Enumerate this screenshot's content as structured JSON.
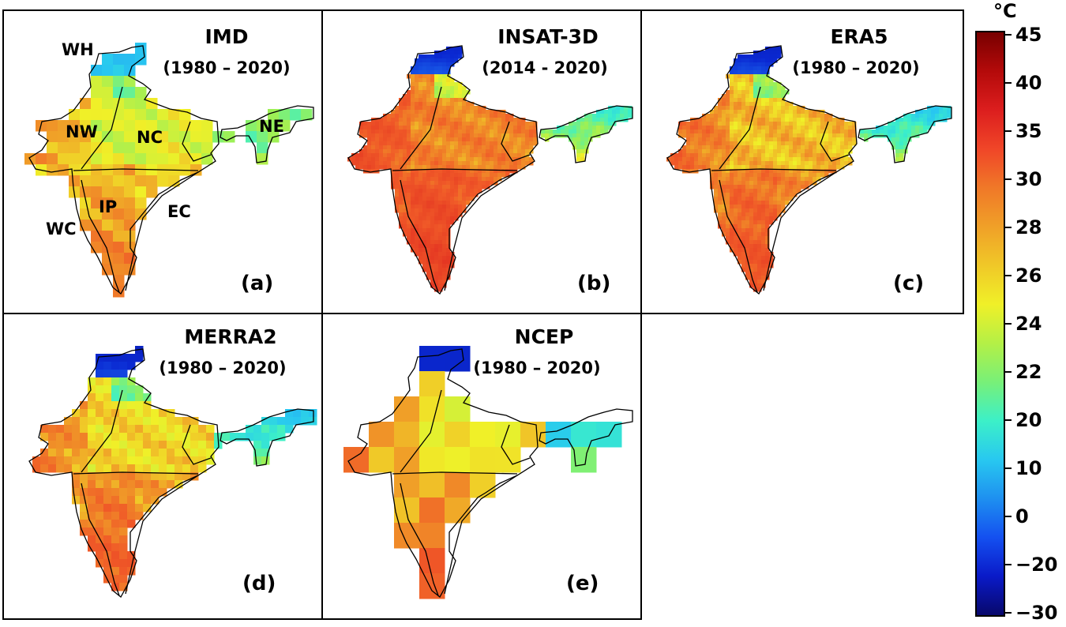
{
  "panels": [
    {
      "id": "a",
      "title": "IMD",
      "period": "(1980 – 2020)",
      "label": "(a)",
      "regions": [
        "WH",
        "NW",
        "NC",
        "NE",
        "IP",
        "EC",
        "WC"
      ],
      "pixel": 14,
      "style": "imd"
    },
    {
      "id": "b",
      "title": "INSAT-3D",
      "period": "(2014 - 2020)",
      "label": "(b)",
      "regions": [],
      "pixel": 5,
      "style": "insat"
    },
    {
      "id": "c",
      "title": "ERA5",
      "period": "(1980 – 2020)",
      "label": "(c)",
      "regions": [],
      "pixel": 5,
      "style": "era5"
    },
    {
      "id": "d",
      "title": "MERRA2",
      "period": "(1980 – 2020)",
      "label": "(d)",
      "regions": [],
      "pixel": 10,
      "style": "merra"
    },
    {
      "id": "e",
      "title": "NCEP",
      "period": "(1980 – 2020)",
      "label": "(e)",
      "regions": [],
      "pixel": 32,
      "style": "ncep"
    }
  ],
  "colorbar": {
    "unit": "°C",
    "ticks": [
      "45",
      "40",
      "35",
      "30",
      "28",
      "26",
      "24",
      "22",
      "20",
      "10",
      "0",
      "−20",
      "−30"
    ],
    "colors": [
      "#08086b",
      "#0a1ac8",
      "#1450f0",
      "#1e90f0",
      "#28c8f0",
      "#3cf0c8",
      "#78f078",
      "#b4f046",
      "#f0f028",
      "#f0c828",
      "#f0a028",
      "#f07828",
      "#f04628",
      "#dc1e1e",
      "#b40a0a",
      "#780000"
    ]
  }
}
